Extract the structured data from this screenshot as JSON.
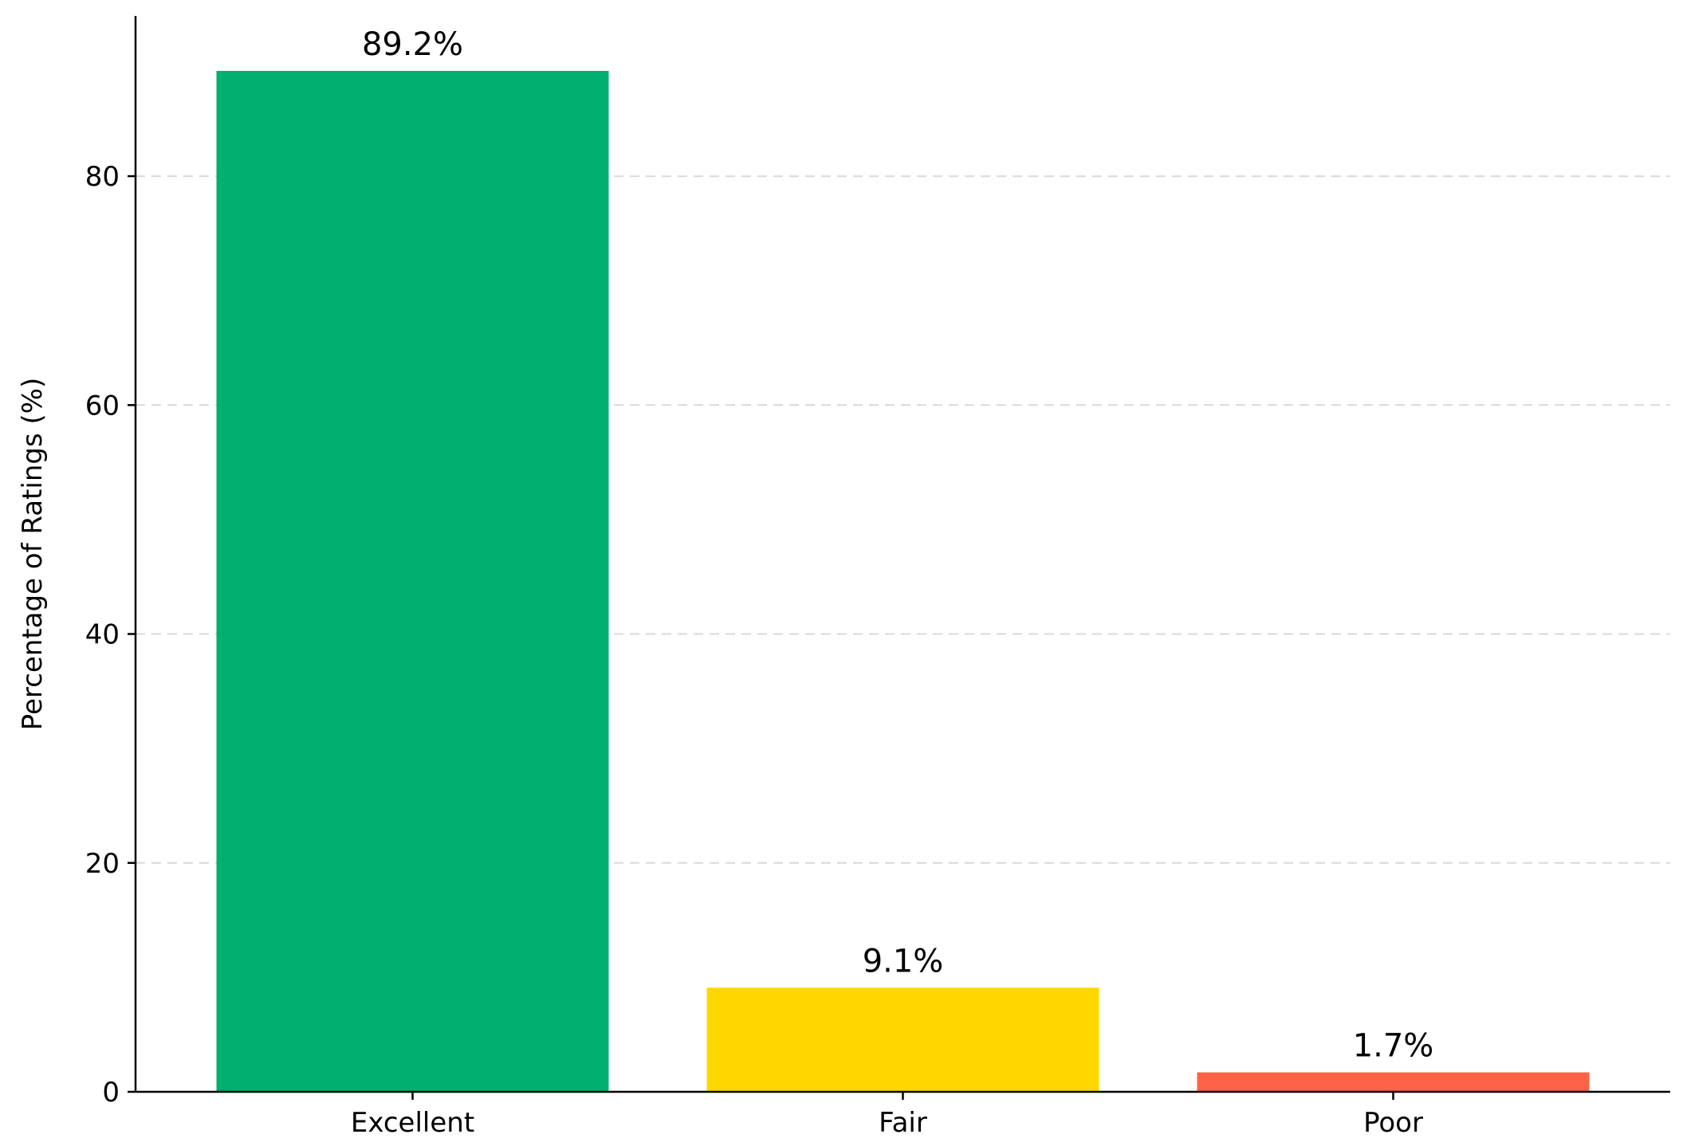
{
  "chart_data": {
    "type": "bar",
    "categories": [
      "Excellent",
      "Fair",
      "Poor"
    ],
    "values": [
      89.2,
      9.1,
      1.7
    ],
    "value_labels": [
      "89.2%",
      "9.1%",
      "1.7%"
    ],
    "colors": [
      "#00b06f",
      "#ffd700",
      "#ff6347"
    ],
    "title": "",
    "xlabel": "",
    "ylabel": "Percentage of Ratings (%)",
    "ylim": [
      0,
      94
    ],
    "yticks": [
      0,
      20,
      40,
      60,
      80
    ],
    "grid": "y-dashed",
    "legend": "none"
  }
}
